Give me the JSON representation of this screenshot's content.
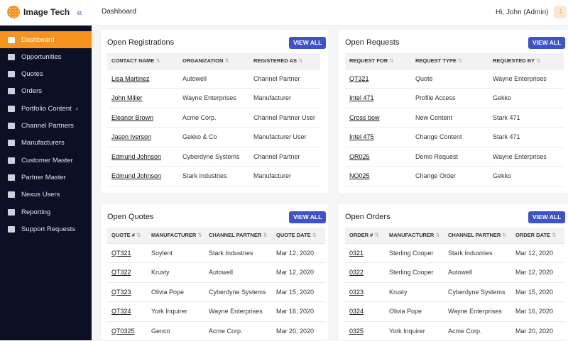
{
  "header": {
    "app_name": "Image Tech",
    "breadcrumb": "Dashboard",
    "greeting": "Hi, John (Admin)",
    "avatar_initial": "J",
    "collapse_icon": "«"
  },
  "sidebar": {
    "items": [
      {
        "label": "Dashboard",
        "active": true
      },
      {
        "label": "Opportunities"
      },
      {
        "label": "Quotes"
      },
      {
        "label": "Orders"
      },
      {
        "label": "Portfolio Content",
        "submenu": "›"
      },
      {
        "label": "Channel Partners"
      },
      {
        "label": "Manufacturers"
      },
      {
        "label": "Customer Master"
      },
      {
        "label": "Partner Master"
      },
      {
        "label": "Nexus Users"
      },
      {
        "label": "Reporting"
      },
      {
        "label": "Support Requests"
      }
    ]
  },
  "sort_icon": "⇅",
  "panels": {
    "registrations": {
      "title": "Open Registrations",
      "button": "VIEW ALL",
      "columns": [
        "CONTACT NAME",
        "ORGANIZATION",
        "REGISTERED AS"
      ],
      "rows": [
        [
          "Lisa Martinez",
          "Autowell",
          "Channel Partner"
        ],
        [
          "John Miller",
          "Wayne Enterprises",
          "Manufacturer"
        ],
        [
          "Eleanor Brown",
          "Acme Corp.",
          "Channel Partner User"
        ],
        [
          "Jason Iverson",
          "Gekko & Co",
          "Manufacturer User"
        ],
        [
          "Edmund Johnson",
          "Cyberdyne Systems",
          "Channel Partner"
        ],
        [
          "Edmund Johnson",
          "Stark Industries",
          "Manufacturer"
        ]
      ]
    },
    "requests": {
      "title": "Open Requests",
      "button": "VIEW ALL",
      "columns": [
        "REQUEST FOR",
        "REQUEST TYPE",
        "REQUESTED BY"
      ],
      "rows": [
        [
          "QT321",
          "Quote",
          "Wayne Enterprises"
        ],
        [
          "Intel 471",
          "Profile Access",
          "Gekko"
        ],
        [
          "Cross bow",
          "New Content",
          "Stark 471"
        ],
        [
          "Intel 475",
          "Change Content",
          "Stark 471"
        ],
        [
          "OR025",
          "Demo Request",
          "Wayne Enterprises"
        ],
        [
          "NO025",
          "Change Order",
          "Gekko"
        ]
      ]
    },
    "quotes": {
      "title": "Open Quotes",
      "button": "VIEW ALL",
      "columns": [
        "QUOTE #",
        "MANUFACTURER",
        "CHANNEL PARTNER",
        "QUOTE DATE"
      ],
      "rows": [
        [
          "QT321",
          "Soylent",
          "Stark Industries",
          "Mar 12, 2020"
        ],
        [
          "QT322",
          "Krusty",
          "Autowell",
          "Mar 12, 2020"
        ],
        [
          "QT323",
          "Olivia Pope",
          "Cyberdyne Systems",
          "Mar 15, 2020"
        ],
        [
          "QT324",
          "York Inquirer",
          "Wayne Enterprises",
          "Mar 16, 2020"
        ],
        [
          "QT0325",
          "Genco",
          "Acme Corp.",
          "Mar 20, 2020"
        ]
      ]
    },
    "orders": {
      "title": "Open Orders",
      "button": "VIEW ALL",
      "columns": [
        "ORDER #",
        "MANUFACTURER",
        "CHANNEL PARTNER",
        "ORDER DATE"
      ],
      "rows": [
        [
          "0321",
          "Sterling Cooper",
          "Stark Industries",
          "Mar 12, 2020"
        ],
        [
          "0322",
          "Sterling Cooper",
          "Autowell",
          "Mar 12, 2020"
        ],
        [
          "0323",
          "Krusty",
          "Cyberdyne Systems",
          "Mar 15, 2020"
        ],
        [
          "0324",
          "Olivia Pope",
          "Wayne Enterprises",
          "Mar 16, 2020"
        ],
        [
          "0325",
          "York Inquirer",
          "Acme Corp.",
          "Mar 20, 2020"
        ]
      ]
    }
  }
}
